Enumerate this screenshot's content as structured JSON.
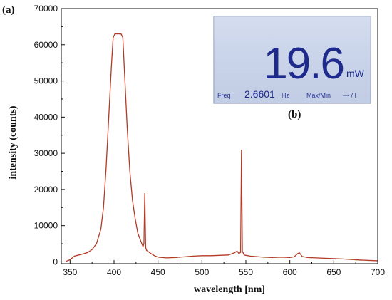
{
  "panel_a": "(a)",
  "panel_b": "(b)",
  "lcd": {
    "reading": "19.6",
    "unit": "mW",
    "freq_label": "Freq",
    "freq_value": "2.6601",
    "freq_unit": "Hz",
    "mode_label": "Max/Min",
    "mode_value": "--- / I"
  },
  "colors": {
    "line": "#b23a26",
    "lcd_background": "#c9d4ea",
    "lcd_text": "#1d2a8c"
  },
  "chart_data": {
    "type": "line",
    "xlabel": "wavelength [nm]",
    "ylabel": "intensity (counts)",
    "xlim": [
      340,
      700
    ],
    "ylim": [
      -500,
      70000
    ],
    "xticks": [
      350,
      400,
      450,
      500,
      550,
      600,
      650,
      700
    ],
    "yticks": [
      0,
      10000,
      20000,
      30000,
      40000,
      50000,
      60000,
      70000
    ],
    "series": [
      {
        "x": [
          345,
          350,
          355,
          360,
          365,
          370,
          375,
          380,
          385,
          388,
          391,
          394,
          397,
          399,
          401,
          404,
          408,
          410,
          412,
          415,
          418,
          421,
          424,
          427,
          430,
          433,
          434,
          435,
          436,
          437,
          438,
          442,
          446,
          450,
          460,
          470,
          480,
          490,
          500,
          510,
          520,
          530,
          537,
          540,
          542,
          544,
          545,
          546,
          547,
          548,
          550,
          555,
          560,
          570,
          580,
          590,
          600,
          605,
          609,
          611,
          614,
          620,
          630,
          640,
          650,
          660,
          670,
          680,
          690,
          700
        ],
        "y": [
          100,
          600,
          1600,
          1900,
          2200,
          2600,
          3400,
          5000,
          9000,
          15000,
          26000,
          40000,
          54000,
          62000,
          63000,
          63000,
          63000,
          62000,
          52000,
          37000,
          25000,
          17000,
          12000,
          8000,
          6000,
          4200,
          5000,
          19000,
          4000,
          3200,
          3000,
          2300,
          1700,
          1300,
          1100,
          1200,
          1400,
          1600,
          1700,
          1700,
          1800,
          1900,
          2500,
          3000,
          2300,
          2600,
          31000,
          2800,
          2500,
          1900,
          1800,
          1600,
          1500,
          1300,
          1200,
          1300,
          1200,
          1400,
          2300,
          2500,
          1500,
          1200,
          1100,
          1000,
          900,
          800,
          650,
          500,
          400,
          300
        ]
      }
    ]
  }
}
